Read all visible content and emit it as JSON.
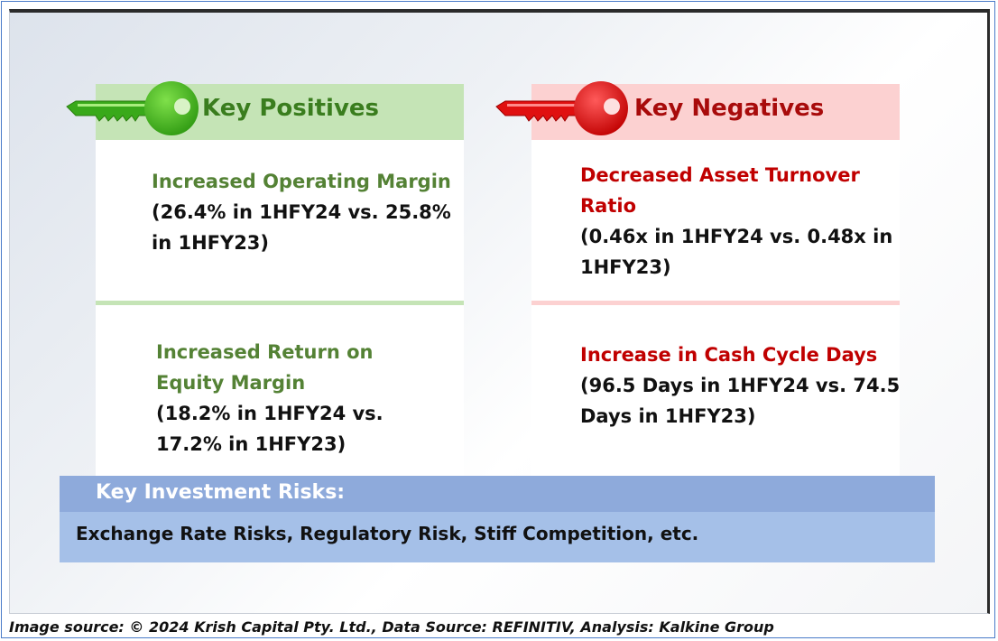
{
  "positives": {
    "title": "Key Positives",
    "items": [
      {
        "title_lines": [
          "Increased Operating Margin"
        ],
        "detail_lines": [
          "(26.4% in 1HFY24 vs. 25.8%",
          "in 1HFY23)"
        ]
      },
      {
        "title_lines": [
          "Increased Return on",
          "Equity Margin"
        ],
        "detail_lines": [
          "(18.2% in 1HFY24 vs.",
          "17.2% in 1HFY23)"
        ]
      }
    ]
  },
  "negatives": {
    "title": "Key Negatives",
    "items": [
      {
        "title_lines": [
          "Decreased Asset Turnover",
          "Ratio"
        ],
        "detail_lines": [
          "(0.46x in 1HFY24 vs. 0.48x in",
          "1HFY23)"
        ]
      },
      {
        "title_lines": [
          "Increase in Cash Cycle Days"
        ],
        "detail_lines": [
          "(96.5 Days in 1HFY24 vs. 74.5",
          "Days in 1HFY23)"
        ]
      }
    ]
  },
  "risks": {
    "heading": "Key Investment Risks:",
    "body": "Exchange Rate Risks, Regulatory Risk, Stiff Competition, etc."
  },
  "caption": "Image source: © 2024 Krish Capital Pty. Ltd., Data Source: REFINITIV, Analysis: Kalkine Group",
  "icons": {
    "positive": "green-key-icon",
    "negative": "red-key-icon"
  },
  "colors": {
    "positive_accent": "#548235",
    "negative_accent": "#c00000",
    "positive_header": "#c5e4b6",
    "negative_header": "#fcd1d1",
    "risk_header": "#8eaadb",
    "risk_body": "#a5c0e8"
  }
}
